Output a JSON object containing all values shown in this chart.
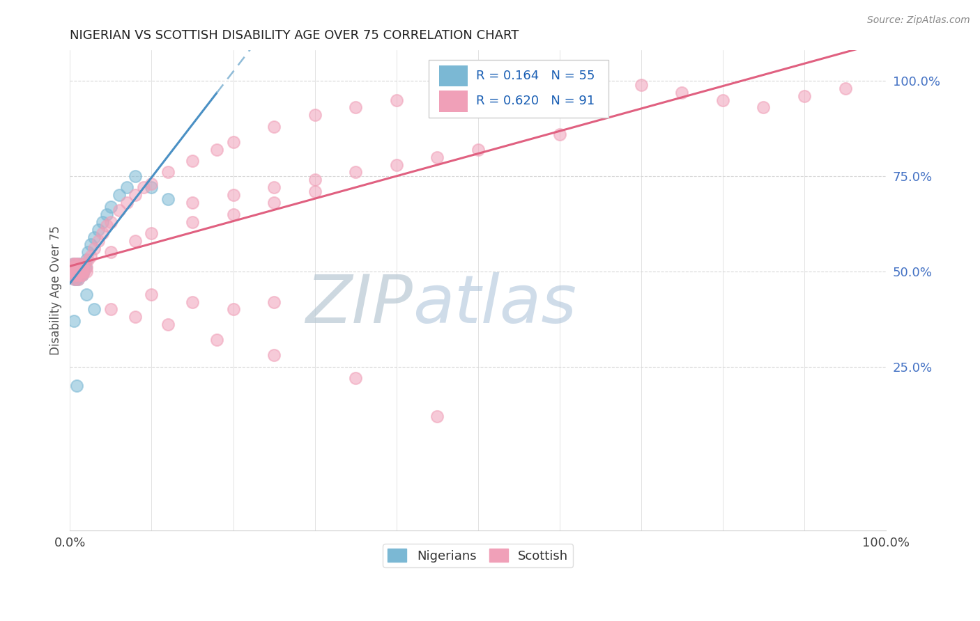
{
  "title": "NIGERIAN VS SCOTTISH DISABILITY AGE OVER 75 CORRELATION CHART",
  "source_text": "Source: ZipAtlas.com",
  "ylabel": "Disability Age Over 75",
  "xlim": [
    0.0,
    1.0
  ],
  "ylim": [
    -0.18,
    1.08
  ],
  "xtick_positions": [
    0.0,
    0.1,
    0.2,
    0.3,
    0.4,
    0.5,
    0.6,
    0.7,
    0.8,
    0.9,
    1.0
  ],
  "xtick_labels": [
    "0.0%",
    "",
    "",
    "",
    "",
    "",
    "",
    "",
    "",
    "",
    "100.0%"
  ],
  "ytick_positions": [
    0.25,
    0.5,
    0.75,
    1.0
  ],
  "ytick_labels": [
    "25.0%",
    "50.0%",
    "75.0%",
    "100.0%"
  ],
  "nigerians_color": "#7bb8d4",
  "scottish_color": "#f0a0b8",
  "nigerian_line_color": "#4a90c4",
  "nigerian_line_color2": "#90bcd8",
  "scottish_line_color": "#e06080",
  "background_color": "#ffffff",
  "grid_color": "#d8d8d8",
  "watermark_zip_color": "#c0ccd8",
  "watermark_atlas_color": "#b8cce0",
  "title_color": "#222222",
  "source_color": "#888888",
  "axis_label_color": "#555555",
  "tick_color_right": "#4472c4",
  "legend_text_color": "#1a5fb4",
  "nig_x": [
    0.002,
    0.003,
    0.003,
    0.004,
    0.004,
    0.005,
    0.005,
    0.005,
    0.006,
    0.006,
    0.006,
    0.007,
    0.007,
    0.007,
    0.007,
    0.008,
    0.008,
    0.008,
    0.009,
    0.009,
    0.009,
    0.01,
    0.01,
    0.01,
    0.01,
    0.011,
    0.011,
    0.012,
    0.012,
    0.013,
    0.013,
    0.014,
    0.015,
    0.015,
    0.016,
    0.017,
    0.018,
    0.019,
    0.02,
    0.022,
    0.025,
    0.03,
    0.035,
    0.04,
    0.045,
    0.05,
    0.06,
    0.07,
    0.08,
    0.1,
    0.12,
    0.02,
    0.03,
    0.005,
    0.008
  ],
  "nig_y": [
    0.5,
    0.51,
    0.49,
    0.5,
    0.52,
    0.5,
    0.51,
    0.49,
    0.5,
    0.52,
    0.48,
    0.5,
    0.51,
    0.49,
    0.48,
    0.5,
    0.51,
    0.52,
    0.5,
    0.49,
    0.51,
    0.5,
    0.52,
    0.49,
    0.48,
    0.51,
    0.5,
    0.5,
    0.52,
    0.49,
    0.51,
    0.5,
    0.5,
    0.49,
    0.51,
    0.5,
    0.52,
    0.51,
    0.53,
    0.55,
    0.57,
    0.59,
    0.61,
    0.63,
    0.65,
    0.67,
    0.7,
    0.72,
    0.75,
    0.72,
    0.69,
    0.44,
    0.4,
    0.37,
    0.2
  ],
  "sco_x": [
    0.002,
    0.003,
    0.003,
    0.004,
    0.004,
    0.005,
    0.005,
    0.006,
    0.006,
    0.006,
    0.007,
    0.007,
    0.007,
    0.008,
    0.008,
    0.009,
    0.009,
    0.01,
    0.01,
    0.01,
    0.011,
    0.011,
    0.012,
    0.012,
    0.013,
    0.014,
    0.015,
    0.015,
    0.016,
    0.017,
    0.018,
    0.02,
    0.02,
    0.022,
    0.025,
    0.03,
    0.035,
    0.04,
    0.045,
    0.05,
    0.06,
    0.07,
    0.08,
    0.09,
    0.1,
    0.12,
    0.15,
    0.18,
    0.2,
    0.25,
    0.3,
    0.35,
    0.4,
    0.45,
    0.5,
    0.55,
    0.6,
    0.65,
    0.7,
    0.75,
    0.8,
    0.85,
    0.9,
    0.95,
    0.15,
    0.2,
    0.25,
    0.3,
    0.35,
    0.4,
    0.45,
    0.5,
    0.6,
    0.05,
    0.08,
    0.1,
    0.15,
    0.2,
    0.25,
    0.3,
    0.1,
    0.15,
    0.2,
    0.25,
    0.05,
    0.08,
    0.12,
    0.18,
    0.25,
    0.35,
    0.45
  ],
  "sco_y": [
    0.5,
    0.51,
    0.49,
    0.5,
    0.52,
    0.5,
    0.51,
    0.5,
    0.52,
    0.48,
    0.5,
    0.51,
    0.49,
    0.5,
    0.52,
    0.5,
    0.49,
    0.5,
    0.51,
    0.48,
    0.51,
    0.5,
    0.5,
    0.52,
    0.49,
    0.51,
    0.5,
    0.49,
    0.51,
    0.5,
    0.52,
    0.51,
    0.5,
    0.53,
    0.54,
    0.56,
    0.58,
    0.6,
    0.62,
    0.63,
    0.66,
    0.68,
    0.7,
    0.72,
    0.73,
    0.76,
    0.79,
    0.82,
    0.84,
    0.88,
    0.91,
    0.93,
    0.95,
    0.98,
    1.0,
    1.02,
    1.03,
    1.01,
    0.99,
    0.97,
    0.95,
    0.93,
    0.96,
    0.98,
    0.68,
    0.7,
    0.72,
    0.74,
    0.76,
    0.78,
    0.8,
    0.82,
    0.86,
    0.55,
    0.58,
    0.6,
    0.63,
    0.65,
    0.68,
    0.71,
    0.44,
    0.42,
    0.4,
    0.42,
    0.4,
    0.38,
    0.36,
    0.32,
    0.28,
    0.22,
    0.12
  ]
}
